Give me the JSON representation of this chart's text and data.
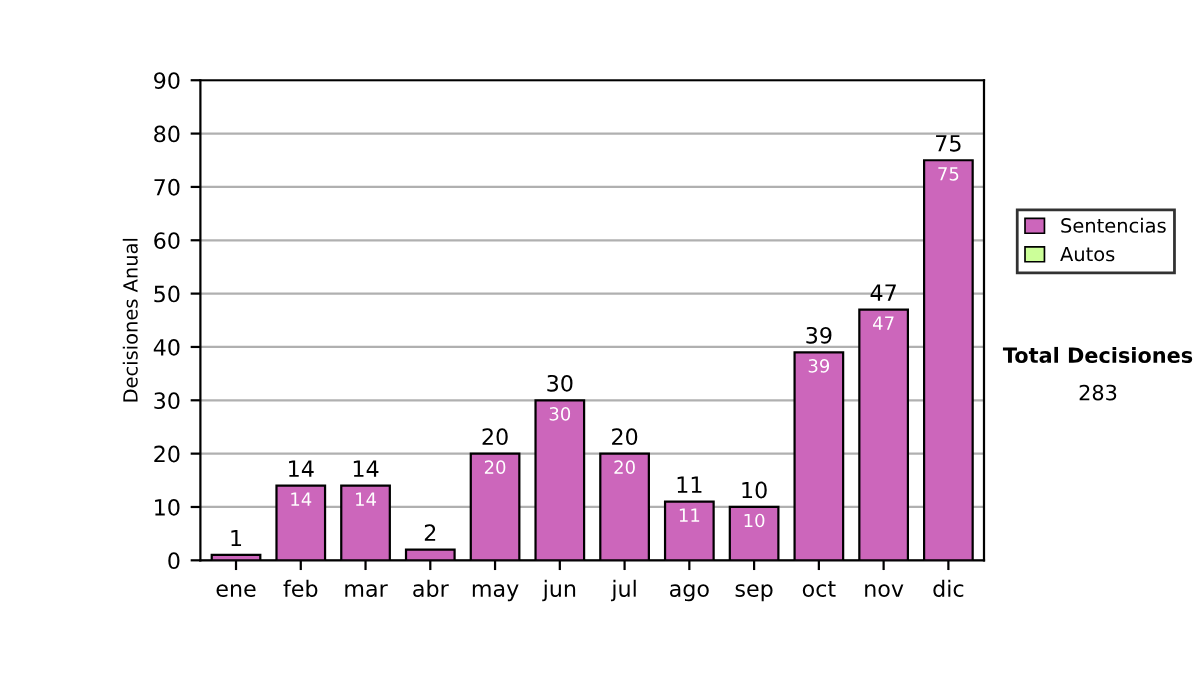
{
  "chart_data": {
    "type": "bar",
    "stacked": true,
    "ylabel": "Decisiones Anual",
    "categories": [
      "ene",
      "feb",
      "mar",
      "abr",
      "may",
      "jun",
      "jul",
      "ago",
      "sep",
      "oct",
      "nov",
      "dic"
    ],
    "series": [
      {
        "name": "Sentencias",
        "color": "#cc66bb",
        "values": [
          1,
          14,
          14,
          2,
          20,
          30,
          20,
          11,
          10,
          39,
          47,
          75
        ],
        "value_labels": [
          null,
          "14",
          "14",
          null,
          "20",
          "30",
          "20",
          "11",
          "10",
          "39",
          "47",
          "75"
        ]
      },
      {
        "name": "Autos",
        "color": "#ccff99",
        "values": [
          null,
          null,
          null,
          null,
          null,
          null,
          null,
          null,
          null,
          null,
          null,
          null
        ]
      }
    ],
    "totals": [
      "1",
      "14",
      "14",
      "2",
      "20",
      "30",
      "20",
      "11",
      "10",
      "39",
      "47",
      "75"
    ],
    "ylim": [
      0,
      90
    ],
    "yticks": [
      0,
      10,
      20,
      30,
      40,
      50,
      60,
      70,
      80,
      90
    ],
    "grid": "y",
    "legend": "right",
    "annotations": [
      "Total Decisiones",
      "283"
    ]
  }
}
